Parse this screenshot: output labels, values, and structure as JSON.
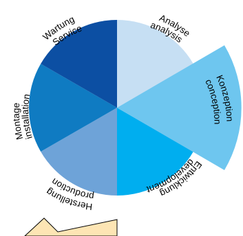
{
  "segments": [
    {
      "id": "analyse",
      "label_de": "Analyse",
      "label_en": "analysis",
      "color": "#c6dff3",
      "highlighted": false
    },
    {
      "id": "konzeption",
      "label_de": "Konzeption",
      "label_en": "conception",
      "color": "#6ec6ef",
      "highlighted": true
    },
    {
      "id": "entwicklung",
      "label_de": "Entwicklung",
      "label_en": "development",
      "color": "#00aeef",
      "highlighted": false
    },
    {
      "id": "herstellung",
      "label_de": "Herstellung",
      "label_en": "production",
      "color": "#6ea3d8",
      "highlighted": false
    },
    {
      "id": "montage",
      "label_de": "Montage",
      "label_en": "installation",
      "color": "#0f7bc2",
      "highlighted": false
    },
    {
      "id": "wartung",
      "label_de": "Wartung",
      "label_en": "Service",
      "color": "#0c4fa3",
      "highlighted": false
    }
  ],
  "detail_color": "#fde5b4"
}
